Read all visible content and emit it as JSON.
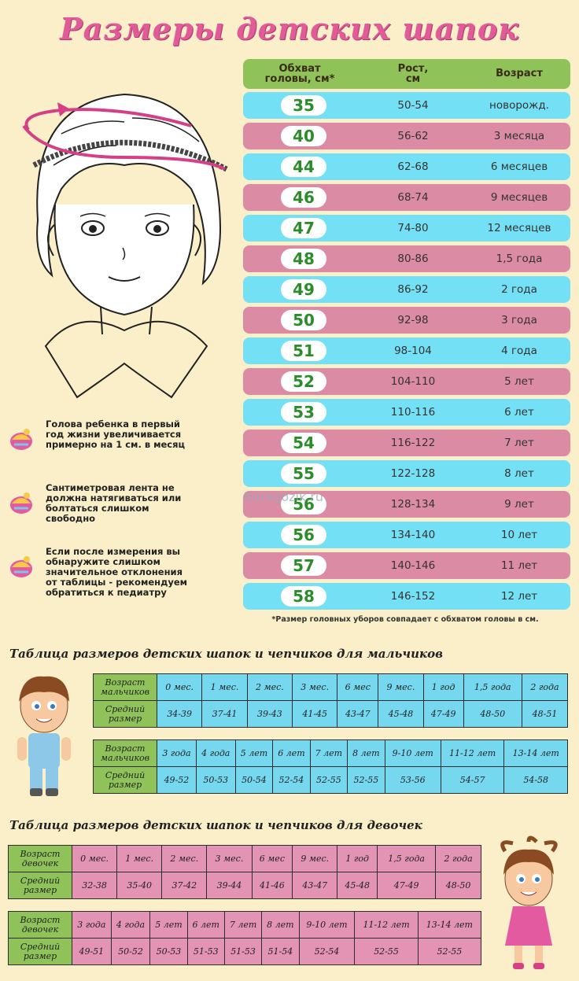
{
  "title": "Размеры детских шапок",
  "main_table": {
    "headers": {
      "circ": [
        "Обхват",
        "головы, см*"
      ],
      "height": [
        "Рост,",
        "см"
      ],
      "age": "Возраст"
    },
    "rows": [
      {
        "circ": "35",
        "height": "50-54",
        "age": "новорожд."
      },
      {
        "circ": "40",
        "height": "56-62",
        "age": "3 месяца"
      },
      {
        "circ": "44",
        "height": "62-68",
        "age": "6 месяцев"
      },
      {
        "circ": "46",
        "height": "68-74",
        "age": "9 месяцев"
      },
      {
        "circ": "47",
        "height": "74-80",
        "age": "12 месяцев"
      },
      {
        "circ": "48",
        "height": "80-86",
        "age": "1,5 года"
      },
      {
        "circ": "49",
        "height": "86-92",
        "age": "2 года"
      },
      {
        "circ": "50",
        "height": "92-98",
        "age": "3 года"
      },
      {
        "circ": "51",
        "height": "98-104",
        "age": "4 года"
      },
      {
        "circ": "52",
        "height": "104-110",
        "age": "5 лет"
      },
      {
        "circ": "53",
        "height": "110-116",
        "age": "6 лет"
      },
      {
        "circ": "54",
        "height": "116-122",
        "age": "7 лет"
      },
      {
        "circ": "55",
        "height": "122-128",
        "age": "8 лет"
      },
      {
        "circ": "56",
        "height": "128-134",
        "age": "9 лет"
      },
      {
        "circ": "56",
        "height": "134-140",
        "age": "10 лет"
      },
      {
        "circ": "57",
        "height": "140-146",
        "age": "11 лет"
      },
      {
        "circ": "58",
        "height": "146-152",
        "age": "12 лет"
      }
    ],
    "footnote": "*Размер головных уборов совпадает с обхватом головы в см."
  },
  "tips": [
    {
      "lines": [
        "Голова ребенка в первый",
        "год жизни увеличивается",
        "примерно на 1 см. в месяц"
      ]
    },
    {
      "lines": [
        "Сантиметровая лента не",
        "должна натягиваться или",
        "болтаться слишком",
        "свободно"
      ]
    },
    {
      "lines": [
        "Если после измерения вы",
        "обнаружите слишком",
        "значительное отклонения",
        "от таблицы - рекомендуем",
        "обратиться к педиатру"
      ]
    }
  ],
  "watermark": "Baragozik.ru",
  "boys": {
    "title": "Таблица размеров детских шапок и чепчиков для мальчиков",
    "age_label": [
      "Возраст",
      "мальчиков"
    ],
    "size_label": [
      "Средний",
      "размер"
    ],
    "table1": {
      "ages": [
        "0 мес.",
        "1 мес.",
        "2 мес.",
        "3 мес.",
        "6 мес",
        "9 мес.",
        "1 год",
        "1,5 года",
        "2 года"
      ],
      "sizes": [
        "34-39",
        "37-41",
        "39-43",
        "41-45",
        "43-47",
        "45-48",
        "47-49",
        "48-50",
        "48-51"
      ]
    },
    "table2": {
      "ages": [
        "3 года",
        "4 года",
        "5 лет",
        "6 лет",
        "7 лет",
        "8 лет",
        "9-10 лет",
        "11-12 лет",
        "13-14 лет"
      ],
      "sizes": [
        "49-52",
        "50-53",
        "50-54",
        "52-54",
        "52-55",
        "52-55",
        "53-56",
        "54-57",
        "54-58"
      ]
    }
  },
  "girls": {
    "title": "Таблица размеров детских шапок и чепчиков для девочек",
    "age_label": [
      "Возраст",
      "девочек"
    ],
    "size_label": [
      "Средний",
      "размер"
    ],
    "table1": {
      "ages": [
        "0 мес.",
        "1 мес.",
        "2 мес.",
        "3 мес.",
        "6 мес",
        "9 мес.",
        "1 год",
        "1,5 года",
        "2 года"
      ],
      "sizes": [
        "32-38",
        "35-40",
        "37-42",
        "39-44",
        "41-46",
        "43-47",
        "45-48",
        "47-49",
        "48-50"
      ]
    },
    "table2": {
      "ages": [
        "3 года",
        "4 года",
        "5 лет",
        "6 лет",
        "7 лет",
        "8 лет",
        "9-10 лет",
        "11-12 лет",
        "13-14 лет"
      ],
      "sizes": [
        "49-51",
        "50-52",
        "50-53",
        "51-53",
        "51-53",
        "51-54",
        "52-54",
        "52-55",
        "52-55"
      ]
    }
  },
  "colors": {
    "title": "#e05b98",
    "row_blue": "#74e0f5",
    "row_pink": "#dc8ba5",
    "header_green": "#8fc35a",
    "circ_green": "#2a8d2a"
  }
}
